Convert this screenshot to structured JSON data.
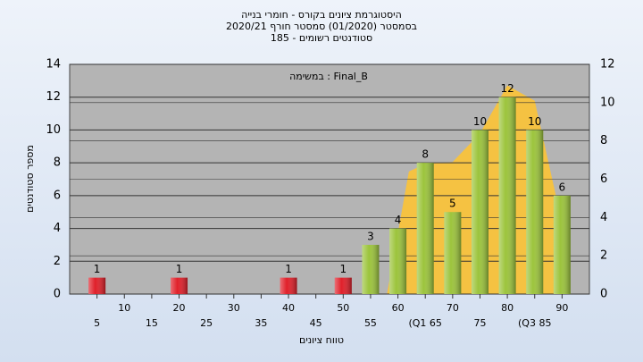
{
  "chart_data": {
    "type": "histogram",
    "title": "היסטוגרמת ציונים בקורס - חומרי בנייה",
    "subtitle": "בסמסטר  (01/2020)  סמסטר חורף  2020/21",
    "subtitle2": "סטודנטים רשומים - 185",
    "annotation": "במשימה : Final_B",
    "y_label": "מספר סטודנטים",
    "x_label": "טווח ציונים",
    "x": [
      5,
      20,
      40,
      50,
      55,
      60,
      65,
      70,
      75,
      80,
      85,
      90
    ],
    "values": [
      1,
      1,
      1,
      1,
      3,
      4,
      8,
      5,
      10,
      12,
      10,
      6
    ],
    "colors": [
      "#e0202a",
      "#e0202a",
      "#e0202a",
      "#e0202a",
      "#9cc43c",
      "#9cc43c",
      "#9cc43c",
      "#9cc43c",
      "#9cc43c",
      "#9cc43c",
      "#9cc43c",
      "#9cc43c"
    ],
    "area": {
      "color": "#f5c242",
      "axis": "y2",
      "x": [
        58,
        62,
        65,
        70,
        75,
        80,
        85,
        90
      ],
      "values": [
        0,
        6.4,
        6.8,
        6.9,
        8.4,
        10.9,
        10.1,
        3.7
      ]
    },
    "xlim": [
      0,
      95
    ],
    "xticks": [
      5,
      10,
      15,
      20,
      25,
      30,
      35,
      40,
      45,
      50,
      55,
      60,
      {
        "value": 65,
        "label": "(Q1 65"
      },
      70,
      75,
      80,
      {
        "value": 85,
        "label": "(Q3 85"
      },
      90
    ],
    "ylim": [
      0,
      14
    ],
    "yticks": [
      0,
      2,
      4,
      6,
      8,
      10,
      12,
      14
    ],
    "y2lim": [
      0,
      12
    ],
    "y2ticks": [
      0,
      2,
      4,
      6,
      8,
      10,
      12
    ],
    "grid": true
  }
}
